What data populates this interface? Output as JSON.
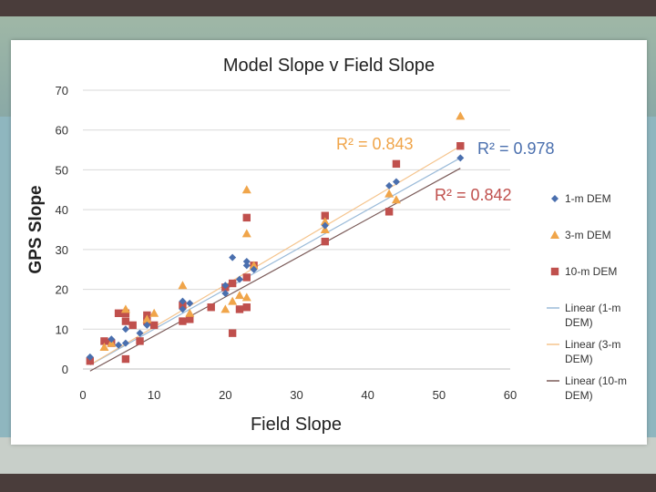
{
  "chart_data": {
    "type": "scatter",
    "title": "Model Slope v Field Slope",
    "xlabel": "Field Slope",
    "ylabel": "GPS Slope",
    "xlim": [
      0,
      60
    ],
    "ylim": [
      0,
      70
    ],
    "xticks": [
      "0",
      "10",
      "20",
      "30",
      "40",
      "50",
      "60"
    ],
    "yticks": [
      "0",
      "10",
      "20",
      "30",
      "40",
      "50",
      "60",
      "70"
    ],
    "grid": true,
    "legend_position": "right",
    "series": [
      {
        "name": "1-m DEM",
        "marker": "diamond",
        "color": "#4a6fae",
        "points": [
          [
            1,
            3
          ],
          [
            4,
            7.5
          ],
          [
            5,
            6
          ],
          [
            6,
            6.5
          ],
          [
            6,
            10
          ],
          [
            8,
            9
          ],
          [
            9,
            11
          ],
          [
            14,
            17
          ],
          [
            14,
            15
          ],
          [
            15,
            16.5
          ],
          [
            20,
            19
          ],
          [
            20,
            21
          ],
          [
            21,
            28
          ],
          [
            22,
            22.5
          ],
          [
            23,
            26
          ],
          [
            23,
            27
          ],
          [
            24,
            25
          ],
          [
            34,
            36
          ],
          [
            43,
            46
          ],
          [
            44,
            47
          ],
          [
            53,
            53
          ]
        ]
      },
      {
        "name": "3-m DEM",
        "marker": "triangle",
        "color": "#f0a54a",
        "points": [
          [
            3,
            5.5
          ],
          [
            4,
            6.5
          ],
          [
            6,
            15
          ],
          [
            9,
            12.5
          ],
          [
            10,
            14
          ],
          [
            14,
            21
          ],
          [
            15,
            14
          ],
          [
            20,
            15
          ],
          [
            21,
            17
          ],
          [
            22,
            18.5
          ],
          [
            23,
            45
          ],
          [
            23,
            34
          ],
          [
            23,
            18
          ],
          [
            24,
            26
          ],
          [
            34,
            37
          ],
          [
            34,
            35
          ],
          [
            43,
            44
          ],
          [
            44,
            42.5
          ],
          [
            53,
            63.5
          ]
        ]
      },
      {
        "name": "10-m DEM",
        "marker": "square",
        "color": "#c0504d",
        "points": [
          [
            1,
            2
          ],
          [
            3,
            7
          ],
          [
            4,
            6.5
          ],
          [
            5,
            14
          ],
          [
            6,
            14
          ],
          [
            6,
            12
          ],
          [
            6,
            2.5
          ],
          [
            7,
            11
          ],
          [
            8,
            7
          ],
          [
            9,
            13.5
          ],
          [
            9,
            12
          ],
          [
            10,
            11
          ],
          [
            14,
            12
          ],
          [
            14,
            16
          ],
          [
            15,
            12.5
          ],
          [
            18,
            15.5
          ],
          [
            20,
            20.5
          ],
          [
            21,
            9
          ],
          [
            21,
            21.5
          ],
          [
            22,
            15
          ],
          [
            23,
            38
          ],
          [
            23,
            23
          ],
          [
            23,
            15.5
          ],
          [
            24,
            26
          ],
          [
            34,
            38.5
          ],
          [
            34,
            32
          ],
          [
            43,
            39.5
          ],
          [
            44,
            51.5
          ],
          [
            53,
            56
          ]
        ]
      }
    ],
    "trendlines": [
      {
        "name": "Linear (1-m DEM)",
        "color": "#9bbbd9",
        "slope": 1.0,
        "intercept": 0.0,
        "r2_label": "R² = 0.978",
        "r2_color": "#4a6fae"
      },
      {
        "name": "Linear (3-m DEM)",
        "color": "#f5c48d",
        "slope": 1.0557,
        "intercept": 0.0,
        "r2_label": "R² = 0.843",
        "r2_color": "#f0a54a"
      },
      {
        "name": "Linear (10-m DEM)",
        "color": "#7a5a58",
        "slope": 0.9792,
        "intercept": -1.5,
        "r2_label": "R² = 0.842",
        "r2_color": "#c0504d"
      }
    ],
    "legend": [
      {
        "label": "1-m DEM",
        "kind": "diamond",
        "color": "#4a6fae"
      },
      {
        "label": "3-m DEM",
        "kind": "triangle",
        "color": "#f0a54a"
      },
      {
        "label": "10-m DEM",
        "kind": "square",
        "color": "#c0504d"
      },
      {
        "label": "Linear (1-m DEM)",
        "kind": "line",
        "color": "#9bbbd9"
      },
      {
        "label": "Linear (3-m DEM)",
        "kind": "line",
        "color": "#f5c48d"
      },
      {
        "label": "Linear (10-m DEM)",
        "kind": "line",
        "color": "#7a5a58"
      }
    ]
  }
}
